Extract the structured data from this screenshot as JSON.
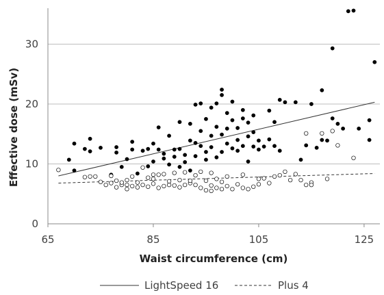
{
  "chart_data": {
    "type": "scatter",
    "xlabel": "Waist circumference (cm)",
    "ylabel": "Effective dose (mSv)",
    "xlim": [
      65,
      128
    ],
    "ylim": [
      0,
      36
    ],
    "xticks": [
      65,
      85,
      105,
      125
    ],
    "yticks": [
      0,
      10,
      20,
      30
    ],
    "grid": "horizontal",
    "legend_position": "bottom",
    "series": [
      {
        "name": "LightSpeed 16",
        "marker": "filled-circle",
        "color": "#000000",
        "points": [
          [
            69,
            10.7
          ],
          [
            70,
            8.9
          ],
          [
            70,
            13.4
          ],
          [
            72,
            12.5
          ],
          [
            73,
            14.2
          ],
          [
            73,
            12.1
          ],
          [
            75,
            12.7
          ],
          [
            77,
            8.2
          ],
          [
            78,
            12.8
          ],
          [
            78,
            11.9
          ],
          [
            79,
            9.5
          ],
          [
            80,
            10.8
          ],
          [
            81,
            13.7
          ],
          [
            81,
            12.4
          ],
          [
            82,
            8.4
          ],
          [
            83,
            12.2
          ],
          [
            84,
            12.5
          ],
          [
            84,
            9.6
          ],
          [
            85,
            10.4
          ],
          [
            85,
            13.4
          ],
          [
            86,
            16.1
          ],
          [
            86,
            12.4
          ],
          [
            87,
            10.9
          ],
          [
            87,
            11.7
          ],
          [
            88,
            14.7
          ],
          [
            88,
            9.9
          ],
          [
            89,
            12.4
          ],
          [
            89,
            11.2
          ],
          [
            90,
            9.5
          ],
          [
            90,
            12.5
          ],
          [
            90,
            17.0
          ],
          [
            91,
            10.3
          ],
          [
            91,
            11.5
          ],
          [
            92,
            8.9
          ],
          [
            92,
            13.9
          ],
          [
            92,
            16.7
          ],
          [
            93,
            19.9
          ],
          [
            93,
            11.3
          ],
          [
            93,
            13.5
          ],
          [
            94,
            20.1
          ],
          [
            94,
            13.0
          ],
          [
            94,
            15.5
          ],
          [
            95,
            12.0
          ],
          [
            95,
            17.5
          ],
          [
            95,
            10.7
          ],
          [
            96,
            19.4
          ],
          [
            96,
            14.7
          ],
          [
            96,
            12.8
          ],
          [
            97,
            16.2
          ],
          [
            97,
            11.1
          ],
          [
            97,
            20.1
          ],
          [
            98,
            21.5
          ],
          [
            98,
            22.4
          ],
          [
            98,
            14.9
          ],
          [
            98,
            12.0
          ],
          [
            99,
            18.5
          ],
          [
            99,
            15.9
          ],
          [
            99,
            13.4
          ],
          [
            100,
            20.4
          ],
          [
            100,
            17.3
          ],
          [
            100,
            12.6
          ],
          [
            101,
            16.0
          ],
          [
            101,
            14.0
          ],
          [
            101,
            12.2
          ],
          [
            102,
            19.0
          ],
          [
            102,
            17.6
          ],
          [
            102,
            13.0
          ],
          [
            103,
            14.6
          ],
          [
            103,
            10.4
          ],
          [
            103,
            16.9
          ],
          [
            104,
            18.1
          ],
          [
            104,
            12.9
          ],
          [
            104,
            15.3
          ],
          [
            105,
            13.9
          ],
          [
            105,
            12.4
          ],
          [
            106,
            12.9
          ],
          [
            107,
            18.9
          ],
          [
            107,
            14.1
          ],
          [
            108,
            17.0
          ],
          [
            108,
            13.0
          ],
          [
            109,
            20.7
          ],
          [
            109,
            12.2
          ],
          [
            110,
            20.3
          ],
          [
            112,
            20.3
          ],
          [
            113,
            10.7
          ],
          [
            114,
            13.1
          ],
          [
            115,
            20.0
          ],
          [
            116,
            12.7
          ],
          [
            117,
            22.3
          ],
          [
            117,
            14.0
          ],
          [
            118,
            13.9
          ],
          [
            119,
            29.3
          ],
          [
            119,
            17.6
          ],
          [
            120,
            16.7
          ],
          [
            121,
            15.9
          ],
          [
            122,
            35.5
          ],
          [
            123,
            35.6
          ],
          [
            124,
            15.9
          ],
          [
            126,
            17.3
          ],
          [
            126,
            14.0
          ],
          [
            127,
            27.0
          ]
        ]
      },
      {
        "name": "Plus 4",
        "marker": "open-circle",
        "color": "#000000",
        "points": [
          [
            67,
            9.0
          ],
          [
            72,
            7.8
          ],
          [
            73,
            7.9
          ],
          [
            74,
            7.9
          ],
          [
            75,
            7.0
          ],
          [
            76,
            6.5
          ],
          [
            77,
            6.8
          ],
          [
            77,
            8.0
          ],
          [
            78,
            6.1
          ],
          [
            78,
            7.2
          ],
          [
            79,
            6.5
          ],
          [
            79,
            6.9
          ],
          [
            80,
            5.8
          ],
          [
            80,
            6.5
          ],
          [
            80,
            7.3
          ],
          [
            81,
            6.3
          ],
          [
            81,
            7.9
          ],
          [
            82,
            6.1
          ],
          [
            82,
            6.9
          ],
          [
            83,
            6.5
          ],
          [
            83,
            9.4
          ],
          [
            84,
            6.2
          ],
          [
            84,
            7.7
          ],
          [
            85,
            6.7
          ],
          [
            85,
            7.5
          ],
          [
            85,
            8.2
          ],
          [
            86,
            6.0
          ],
          [
            86,
            8.2
          ],
          [
            87,
            6.3
          ],
          [
            87,
            8.3
          ],
          [
            88,
            6.5
          ],
          [
            88,
            7.1
          ],
          [
            89,
            6.4
          ],
          [
            89,
            8.5
          ],
          [
            90,
            6.1
          ],
          [
            90,
            7.3
          ],
          [
            91,
            6.5
          ],
          [
            91,
            8.6
          ],
          [
            92,
            6.8
          ],
          [
            92,
            7.2
          ],
          [
            93,
            6.5
          ],
          [
            93,
            8.1
          ],
          [
            94,
            6.0
          ],
          [
            94,
            8.7
          ],
          [
            95,
            5.6
          ],
          [
            95,
            7.2
          ],
          [
            96,
            5.5
          ],
          [
            96,
            6.4
          ],
          [
            96,
            8.5
          ],
          [
            97,
            6.0
          ],
          [
            97,
            7.5
          ],
          [
            98,
            5.8
          ],
          [
            98,
            7.0
          ],
          [
            99,
            6.3
          ],
          [
            99,
            7.9
          ],
          [
            100,
            5.8
          ],
          [
            101,
            6.6
          ],
          [
            102,
            6.0
          ],
          [
            102,
            8.2
          ],
          [
            103,
            5.8
          ],
          [
            104,
            6.2
          ],
          [
            105,
            6.6
          ],
          [
            105,
            7.5
          ],
          [
            106,
            7.6
          ],
          [
            107,
            6.8
          ],
          [
            108,
            7.9
          ],
          [
            109,
            8.1
          ],
          [
            110,
            8.7
          ],
          [
            111,
            7.3
          ],
          [
            112,
            8.3
          ],
          [
            113,
            7.3
          ],
          [
            114,
            6.5
          ],
          [
            114,
            15.1
          ],
          [
            115,
            6.9
          ],
          [
            115,
            6.5
          ],
          [
            117,
            15.1
          ],
          [
            118,
            7.5
          ],
          [
            119,
            15.5
          ],
          [
            120,
            13.1
          ],
          [
            123,
            11.0
          ]
        ]
      }
    ],
    "trendlines": [
      {
        "name": "LightSpeed 16",
        "style": "solid",
        "x": [
          67,
          127
        ],
        "y": [
          8.0,
          20.3
        ]
      },
      {
        "name": "Plus 4",
        "style": "dashed",
        "x": [
          67,
          127
        ],
        "y": [
          6.8,
          8.4
        ]
      }
    ]
  },
  "legend": {
    "items": [
      {
        "label": "LightSpeed 16",
        "style": "solid"
      },
      {
        "label": "Plus 4",
        "style": "dashed"
      }
    ]
  }
}
